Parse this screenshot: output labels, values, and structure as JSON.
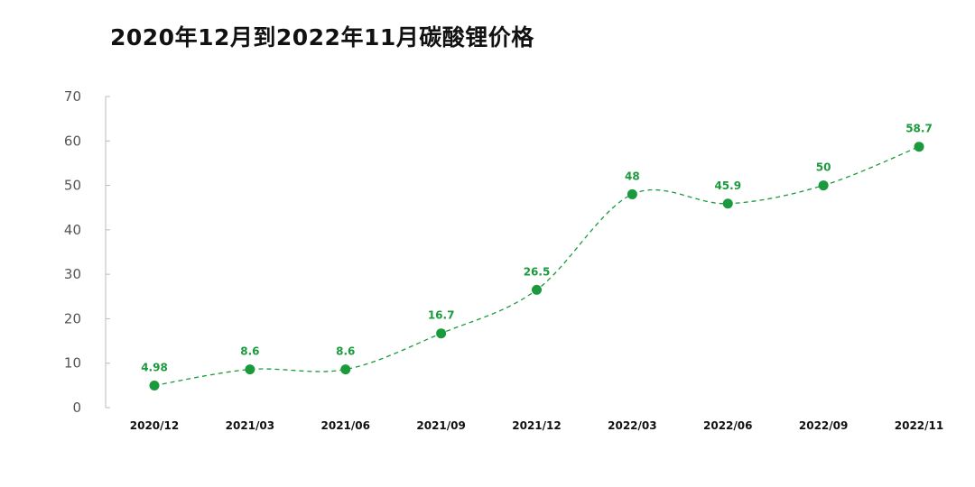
{
  "chart_data": {
    "type": "line",
    "title": "2020年12月到2022年11月碳酸锂价格",
    "categories": [
      "2020/12",
      "2021/03",
      "2021/06",
      "2021/09",
      "2021/12",
      "2022/03",
      "2022/06",
      "2022/09",
      "2022/11"
    ],
    "series": [
      {
        "values": [
          4.98,
          8.6,
          8.6,
          16.7,
          26.5,
          48,
          45.9,
          50,
          58.7
        ],
        "labels": [
          "4.98",
          "8.6",
          "8.6",
          "16.7",
          "26.5",
          "48",
          "45.9",
          "50",
          "58.7"
        ]
      }
    ],
    "y_ticks": [
      "0",
      "10",
      "20",
      "30",
      "40",
      "50",
      "60",
      "70"
    ],
    "ylim": [
      0,
      70
    ],
    "xlabel": "",
    "ylabel": "",
    "grid": false,
    "line_style": "dashed",
    "smooth": true,
    "colors": {
      "series": "#1a9a3c",
      "axis": "#bbbbbb"
    }
  }
}
